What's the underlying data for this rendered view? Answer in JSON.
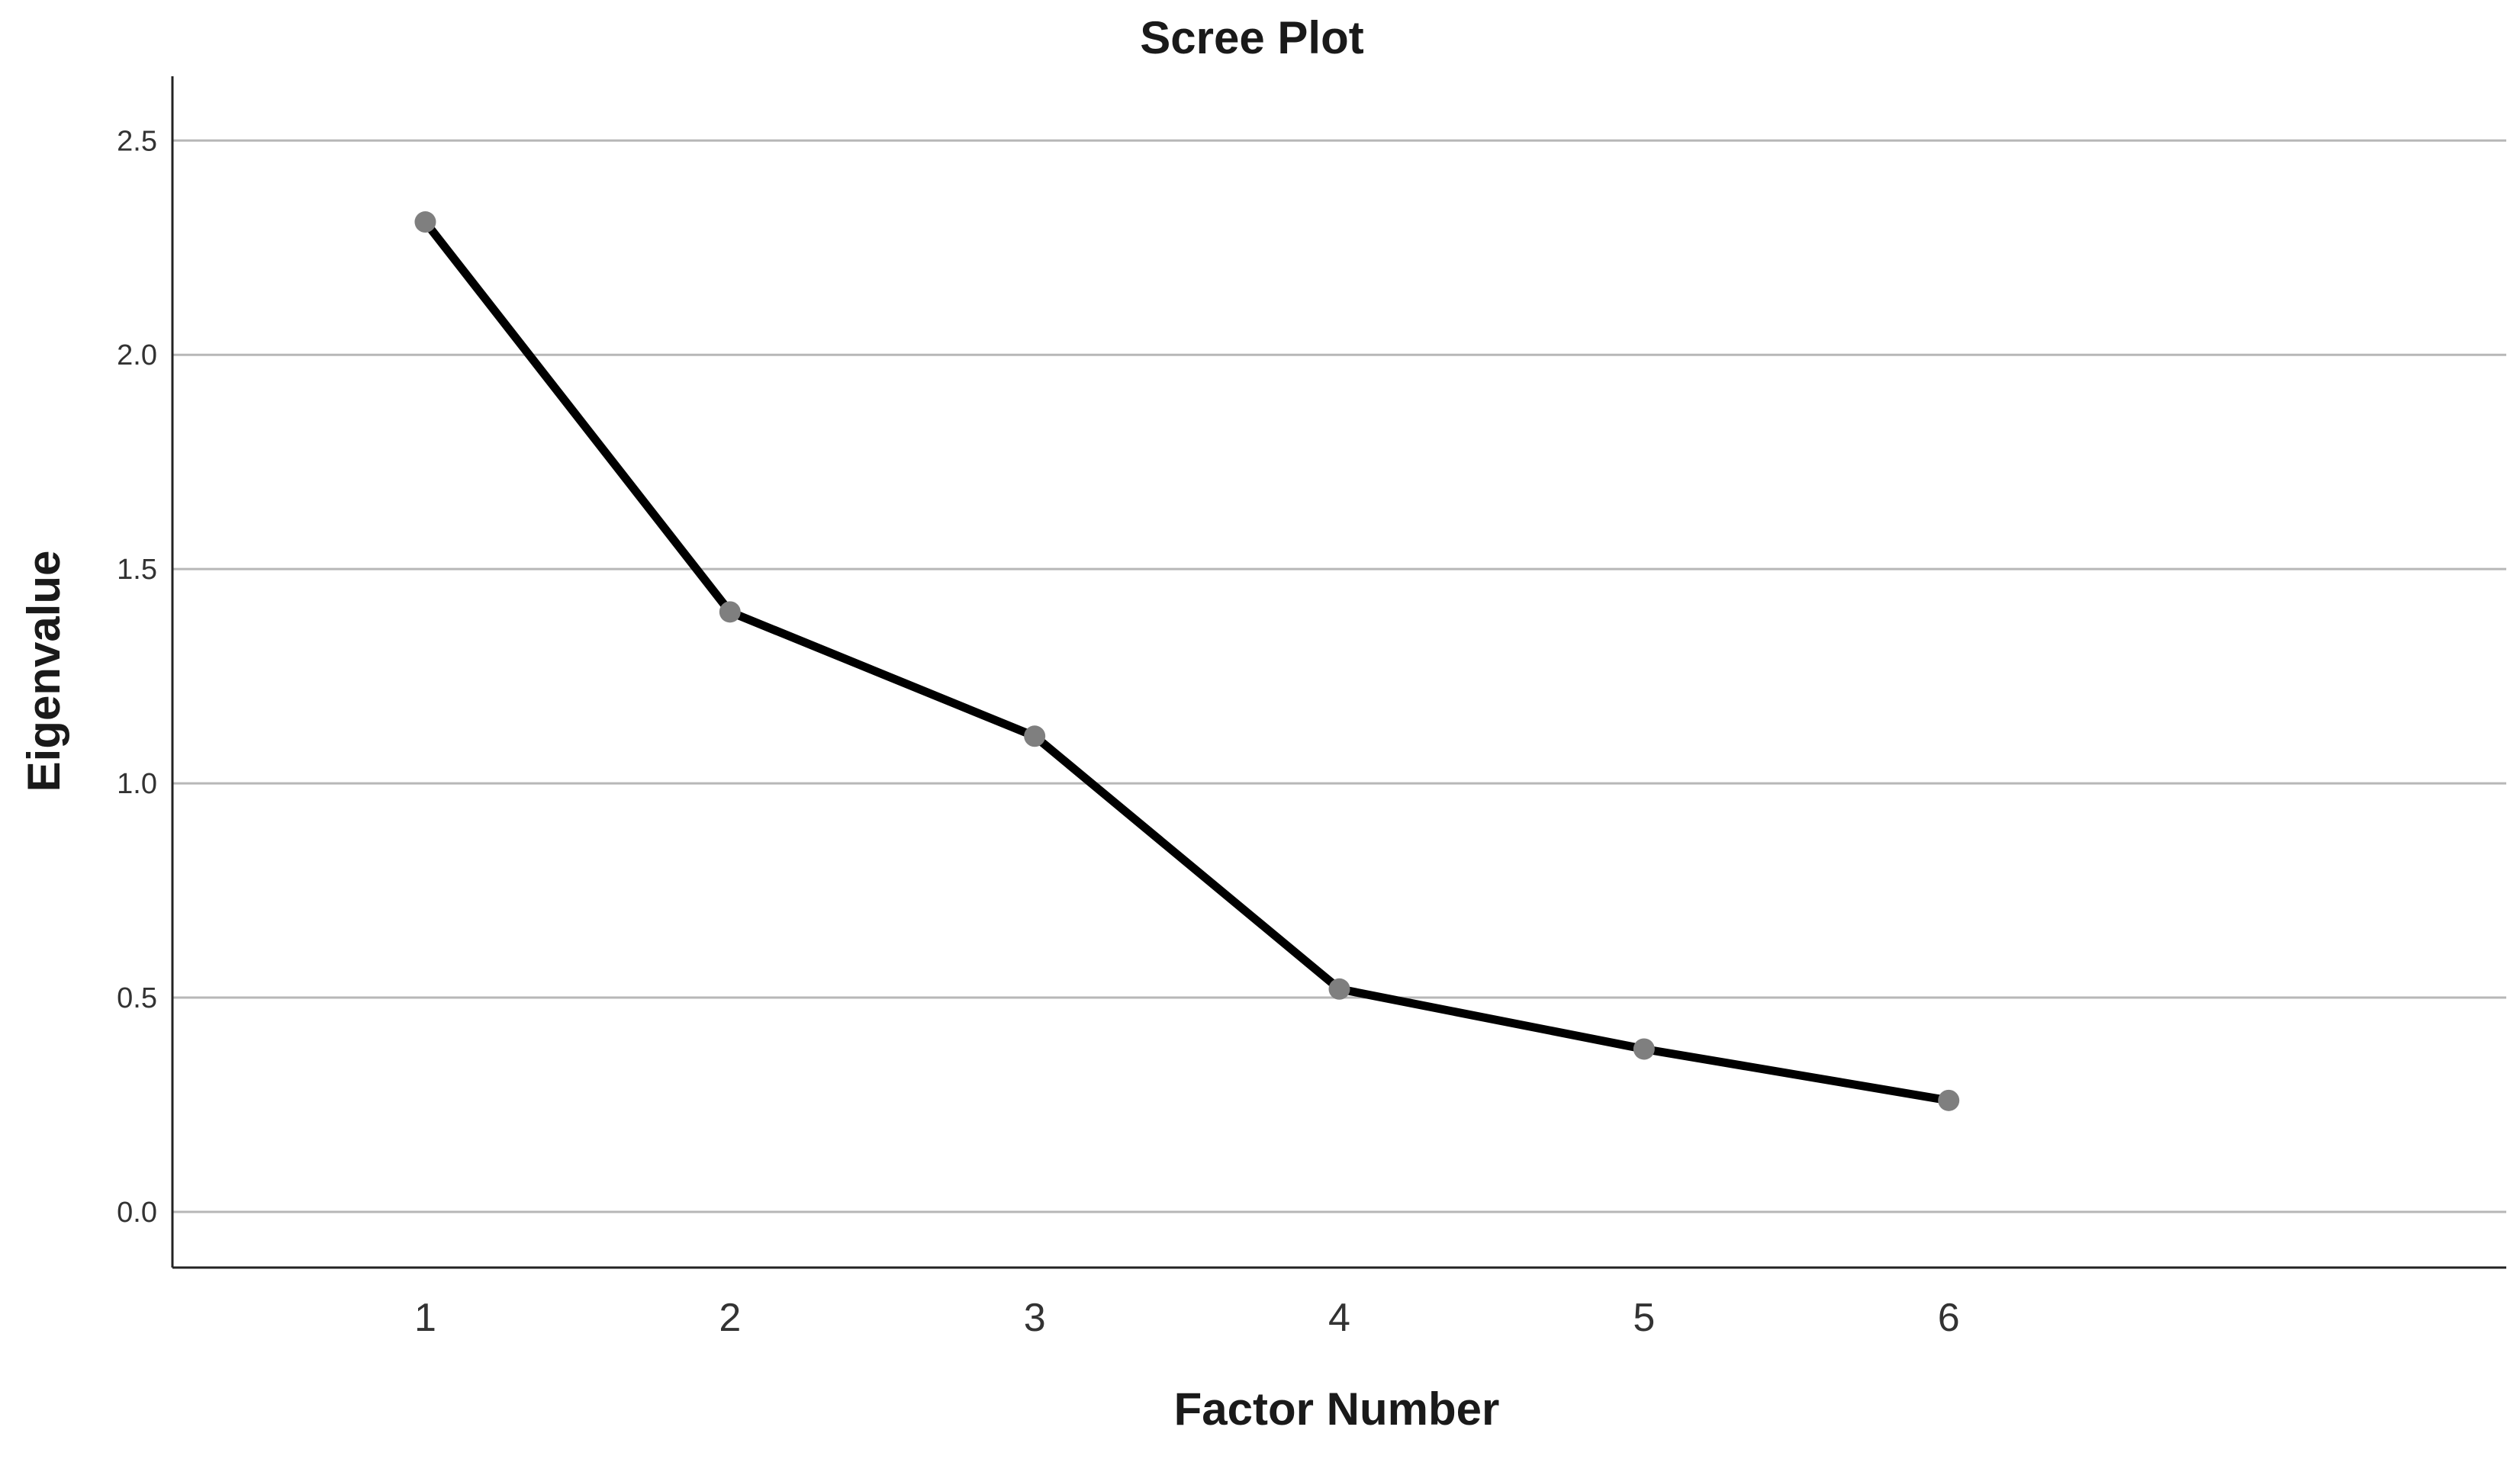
{
  "chart_data": {
    "type": "line",
    "title": "Scree Plot",
    "xlabel": "Factor Number",
    "ylabel": "Eigenvalue",
    "x": [
      1,
      2,
      3,
      4,
      5,
      6
    ],
    "categories": [
      "1",
      "2",
      "3",
      "4",
      "5",
      "6"
    ],
    "values": [
      2.31,
      1.4,
      1.11,
      0.52,
      0.38,
      0.26
    ],
    "yticks": [
      "0.0",
      "0.5",
      "1.0",
      "1.5",
      "2.0",
      "2.5"
    ],
    "ytick_values": [
      0.0,
      0.5,
      1.0,
      1.5,
      2.0,
      2.5
    ],
    "ylim": [
      -0.13,
      2.65
    ],
    "xlim": [
      0.17,
      7.83
    ],
    "grid": true,
    "legend": "none",
    "colors": {
      "line": "#000000",
      "marker": "#7f7f7f",
      "grid": "#b7b7b7"
    }
  }
}
